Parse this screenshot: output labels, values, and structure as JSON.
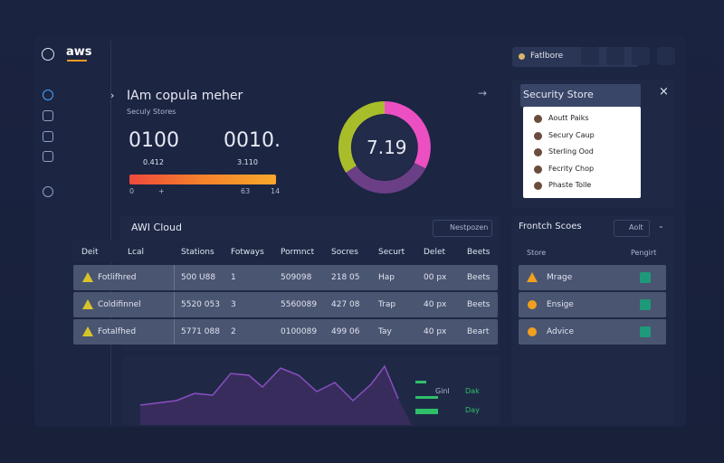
{
  "header": {
    "logo": "aws",
    "button": "Fatlbore"
  },
  "summary": {
    "title": "IAm copula meher",
    "subtitle": "Seculy Stores",
    "stats": [
      {
        "value": "0100",
        "sub": "0.412"
      },
      {
        "value": "0010.",
        "sub": "3.110"
      }
    ],
    "bar_labels": [
      "0",
      "+",
      "63",
      "14"
    ],
    "donut_value": "7.19"
  },
  "dropdown": {
    "title": "Security Store",
    "items": [
      "Aoutt Paiks",
      "Secury Caup",
      "Sterling Ood",
      "Fecrity Chop",
      "Phaste Tolle"
    ]
  },
  "table": {
    "title": "AWI Cloud",
    "search": "Nestpozen",
    "columns": [
      "Deit",
      "Lcal",
      "Stations",
      "Fotways",
      "Pormnct",
      "Socres",
      "Securt",
      "Delet",
      "Beets"
    ],
    "rows": [
      [
        "Fotlifhred",
        "500 U88",
        "1",
        "509098",
        "218 05",
        "Hap",
        "00 px",
        "Beets"
      ],
      [
        "Coldifinnel",
        "5520 053",
        "3",
        "5560089",
        "427 08",
        "Trap",
        "40 px",
        "Beets"
      ],
      [
        "Fotalfhed",
        "5771 088",
        "2",
        "0100089",
        "499 06",
        "Tay",
        "40 px",
        "Beart"
      ]
    ]
  },
  "side": {
    "title": "Frontch Scoes",
    "button": "Aolt",
    "columns": [
      "Store",
      "Pengirt"
    ],
    "rows": [
      "Mrage",
      "Ensige",
      "Advice"
    ]
  },
  "legend": [
    "Ginl",
    "Dak",
    "Day"
  ]
}
